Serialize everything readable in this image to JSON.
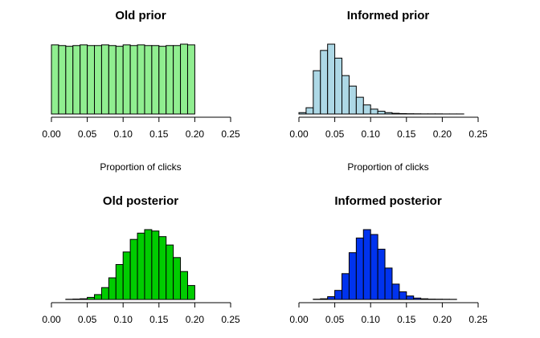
{
  "chart_data": [
    {
      "type": "bar",
      "title": "Old prior",
      "xlabel": "Proportion of clicks",
      "ylabel": "",
      "xlim": [
        0,
        0.25
      ],
      "xticks": [
        "0.00",
        "0.05",
        "0.10",
        "0.15",
        "0.20",
        "0.25"
      ],
      "bin_width": 0.01,
      "bin_start": 0.0,
      "counts": [
        0.98,
        0.97,
        0.96,
        0.97,
        0.98,
        0.97,
        0.97,
        0.98,
        0.97,
        0.96,
        0.98,
        0.97,
        0.98,
        0.97,
        0.97,
        0.96,
        0.97,
        0.97,
        0.99,
        0.98
      ],
      "fill": "#90ee90",
      "grid": false
    },
    {
      "type": "bar",
      "title": "Informed prior",
      "xlabel": "Proportion of clicks",
      "ylabel": "",
      "xlim": [
        0,
        0.25
      ],
      "xticks": [
        "0.00",
        "0.05",
        "0.10",
        "0.15",
        "0.20",
        "0.25"
      ],
      "bin_width": 0.01,
      "bin_start": 0.0,
      "counts": [
        0.02,
        0.09,
        0.62,
        0.91,
        1.0,
        0.8,
        0.55,
        0.4,
        0.24,
        0.13,
        0.07,
        0.04,
        0.02,
        0.01,
        0.006,
        0.004,
        0.003,
        0.002,
        0.002,
        0.002,
        0.001,
        0.001,
        0.001
      ],
      "fill": "#add8e6",
      "grid": false
    },
    {
      "type": "bar",
      "title": "Old posterior",
      "xlabel": "",
      "ylabel": "",
      "xlim": [
        0,
        0.25
      ],
      "xticks": [
        "0.00",
        "0.05",
        "0.10",
        "0.15",
        "0.20",
        "0.25"
      ],
      "bin_width": 0.01,
      "bin_start": 0.02,
      "counts": [
        0.003,
        0.006,
        0.01,
        0.03,
        0.07,
        0.17,
        0.31,
        0.5,
        0.68,
        0.86,
        0.95,
        1.0,
        0.98,
        0.9,
        0.78,
        0.6,
        0.4,
        0.2
      ],
      "fill": "#00cc00",
      "grid": false
    },
    {
      "type": "bar",
      "title": "Informed posterior",
      "xlabel": "",
      "ylabel": "",
      "xlim": [
        0,
        0.25
      ],
      "xticks": [
        "0.00",
        "0.05",
        "0.10",
        "0.15",
        "0.20",
        "0.25"
      ],
      "bin_width": 0.01,
      "bin_start": 0.02,
      "counts": [
        0.004,
        0.01,
        0.04,
        0.13,
        0.37,
        0.67,
        0.88,
        1.0,
        0.93,
        0.72,
        0.45,
        0.22,
        0.11,
        0.05,
        0.02,
        0.01,
        0.005,
        0.004,
        0.003,
        0.002
      ],
      "fill": "#0033ee",
      "grid": false
    }
  ]
}
